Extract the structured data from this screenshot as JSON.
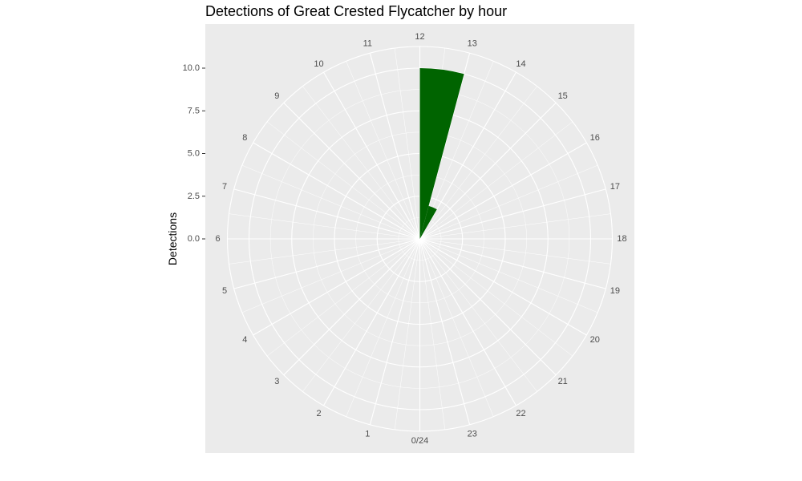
{
  "chart_data": {
    "type": "bar",
    "coord": "polar",
    "title": "Detections of Great Crested Flycatcher by hour",
    "xlabel": "",
    "ylabel": "Detections",
    "categories": [
      "0/24",
      "1",
      "2",
      "3",
      "4",
      "5",
      "6",
      "7",
      "8",
      "9",
      "10",
      "11",
      "12",
      "13",
      "14",
      "15",
      "16",
      "17",
      "18",
      "19",
      "20",
      "21",
      "22",
      "23"
    ],
    "values": [
      0,
      0,
      0,
      0,
      0,
      0,
      0,
      0,
      0,
      0,
      0,
      0,
      10,
      2,
      0,
      0,
      0,
      0,
      0,
      0,
      0,
      0,
      0,
      0
    ],
    "yticks": [
      "0.0",
      "2.5",
      "5.0",
      "7.5",
      "10.0"
    ],
    "ylim": [
      0,
      10
    ],
    "bar_color": "#006400",
    "panel_color": "#ebebeb",
    "grid_color": "#ffffff",
    "grid": true,
    "legend": "none"
  }
}
